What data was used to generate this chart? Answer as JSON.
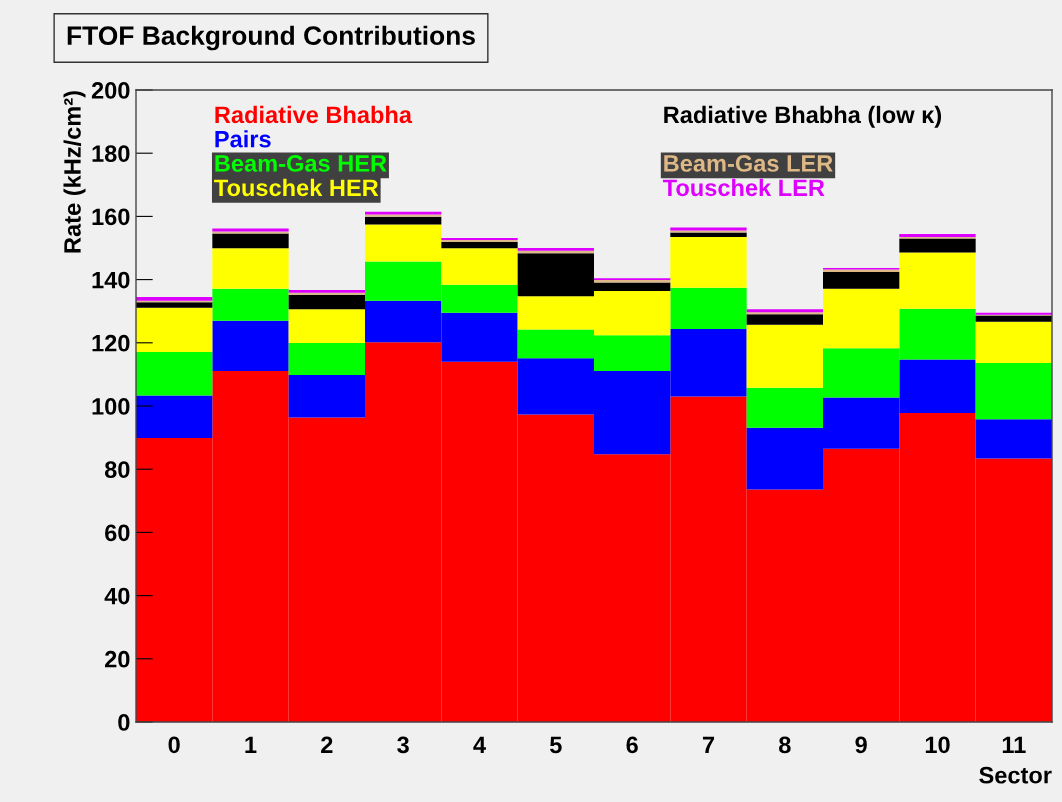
{
  "chart_data": {
    "type": "bar",
    "stacked": true,
    "title": "FTOF Background Contributions",
    "xlabel": "Sector",
    "ylabel": "Rate (kHz/cm²)",
    "categories": [
      "0",
      "1",
      "2",
      "3",
      "4",
      "5",
      "6",
      "7",
      "8",
      "9",
      "10",
      "11"
    ],
    "ylim": [
      0,
      200
    ],
    "yticks": [
      0,
      20,
      40,
      60,
      80,
      100,
      120,
      140,
      160,
      180,
      200
    ],
    "grid": false,
    "series": [
      {
        "name": "Radiative Bhabha",
        "color": "#ff0000",
        "values": [
          89.9,
          111.1,
          96.4,
          120.2,
          114,
          97.3,
          84.7,
          103,
          73.6,
          86.5,
          97.8,
          83.4
        ]
      },
      {
        "name": "Pairs",
        "color": "#0000ff",
        "values": [
          13.4,
          15.9,
          13.4,
          13.1,
          15.5,
          17.8,
          26.4,
          21.4,
          19.5,
          16.2,
          16.9,
          12.4
        ]
      },
      {
        "name": "Beam-Gas HER",
        "color": "#00ff00",
        "values": [
          13.8,
          10.1,
          10.1,
          12.4,
          8.9,
          9.1,
          11.3,
          13,
          12.7,
          15.6,
          16.1,
          17.8
        ]
      },
      {
        "name": "Touschek HER",
        "color": "#ffff00",
        "values": [
          14,
          12.8,
          10.7,
          11.7,
          11.5,
          10.5,
          14,
          16.1,
          19.9,
          18.8,
          17.8,
          13.1
        ]
      },
      {
        "name": "Radiative Bhabha (low κ)",
        "color": "#000000",
        "values": [
          1.7,
          4.7,
          4.6,
          2.5,
          2,
          13.6,
          2.7,
          1.4,
          3.3,
          5.3,
          4.4,
          1.9
        ]
      },
      {
        "name": "Beam-Gas LER",
        "color": "#deb887",
        "values": [
          0.5,
          0.6,
          0.6,
          0.7,
          0.6,
          0.8,
          0.8,
          0.6,
          0.7,
          0.8,
          0.5,
          0.3
        ]
      },
      {
        "name": "Touschek LER",
        "color": "#dd00ff",
        "values": [
          1.2,
          1.0,
          0.9,
          0.9,
          0.7,
          0.9,
          0.5,
          1.0,
          0.9,
          0.5,
          0.9,
          0.6
        ]
      }
    ]
  }
}
